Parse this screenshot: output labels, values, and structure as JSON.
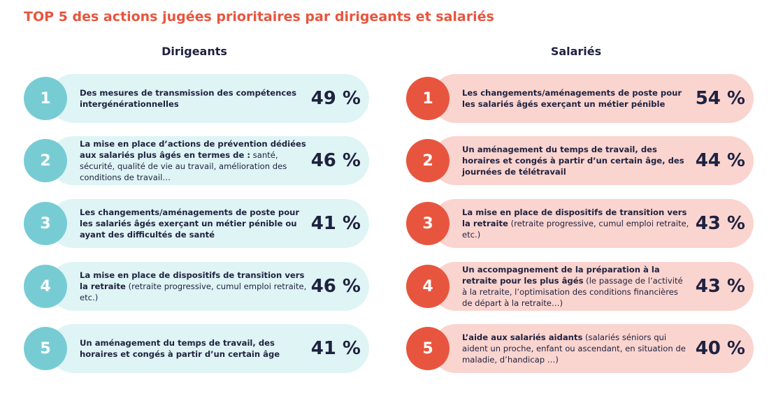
{
  "title": "TOP 5 des actions jugées prioritaires par dirigeants et salariés",
  "colors": {
    "title": "#e8553e",
    "dirigeants_accent": "#77ccd4",
    "dirigeants_bg": "#dff4f5",
    "salaries_accent": "#e8553e",
    "salaries_bg": "#fad4cf",
    "text": "#1e2240"
  },
  "chart_data": [
    {
      "type": "table",
      "title": "Dirigeants",
      "rows": [
        {
          "rank": "1",
          "label_bold": "Des mesures de transmission des compétences intergénérationnelles",
          "label_plain": "",
          "value": 49,
          "value_label": "49 %"
        },
        {
          "rank": "2",
          "label_bold": "La mise en place d’actions de prévention dédiées aux salariés plus âgés en termes de :",
          "label_plain": " santé, sécurité, qualité de vie au travail, amélioration des conditions de travail…",
          "value": 46,
          "value_label": "46 %"
        },
        {
          "rank": "3",
          "label_bold": "Les changements/aménagements de poste pour les salariés âgés exerçant un métier pénible ou ayant des difficultés de santé",
          "label_plain": "",
          "value": 41,
          "value_label": "41 %"
        },
        {
          "rank": "4",
          "label_bold": "La mise en place de dispositifs de transition vers la retraite",
          "label_plain": " (retraite progressive, cumul emploi retraite, etc.)",
          "value": 46,
          "value_label": "46 %"
        },
        {
          "rank": "5",
          "label_bold": "Un aménagement du temps de travail, des horaires et congés à partir d’un certain âge",
          "label_plain": "",
          "value": 41,
          "value_label": "41 %"
        }
      ]
    },
    {
      "type": "table",
      "title": "Salariés",
      "rows": [
        {
          "rank": "1",
          "label_bold": "Les changements/aménagements de poste pour les salariés âgés exerçant un métier pénible",
          "label_plain": "",
          "value": 54,
          "value_label": "54 %"
        },
        {
          "rank": "2",
          "label_bold": "Un aménagement du temps de travail, des horaires et congés à partir d’un certain âge, des journées de télétravail",
          "label_plain": "",
          "value": 44,
          "value_label": "44 %"
        },
        {
          "rank": "3",
          "label_bold": "La mise en place de dispositifs de transition vers la retraite",
          "label_plain": " (retraite progressive, cumul emploi retraite, etc.)",
          "value": 43,
          "value_label": "43 %"
        },
        {
          "rank": "4",
          "label_bold": "Un accompagnement de la préparation à la retraite pour les plus âgés",
          "label_plain": " (le passage de l’activité à la retraite, l’optimisation des conditions financières de départ à la retraite…)",
          "value": 43,
          "value_label": "43 %"
        },
        {
          "rank": "5",
          "label_bold": "L’aide aux salariés aidants",
          "label_plain": " (salariés séniors qui aident un proche, enfant ou ascendant, en situation de maladie, d’handicap …)",
          "value": 40,
          "value_label": "40 %"
        }
      ]
    }
  ]
}
